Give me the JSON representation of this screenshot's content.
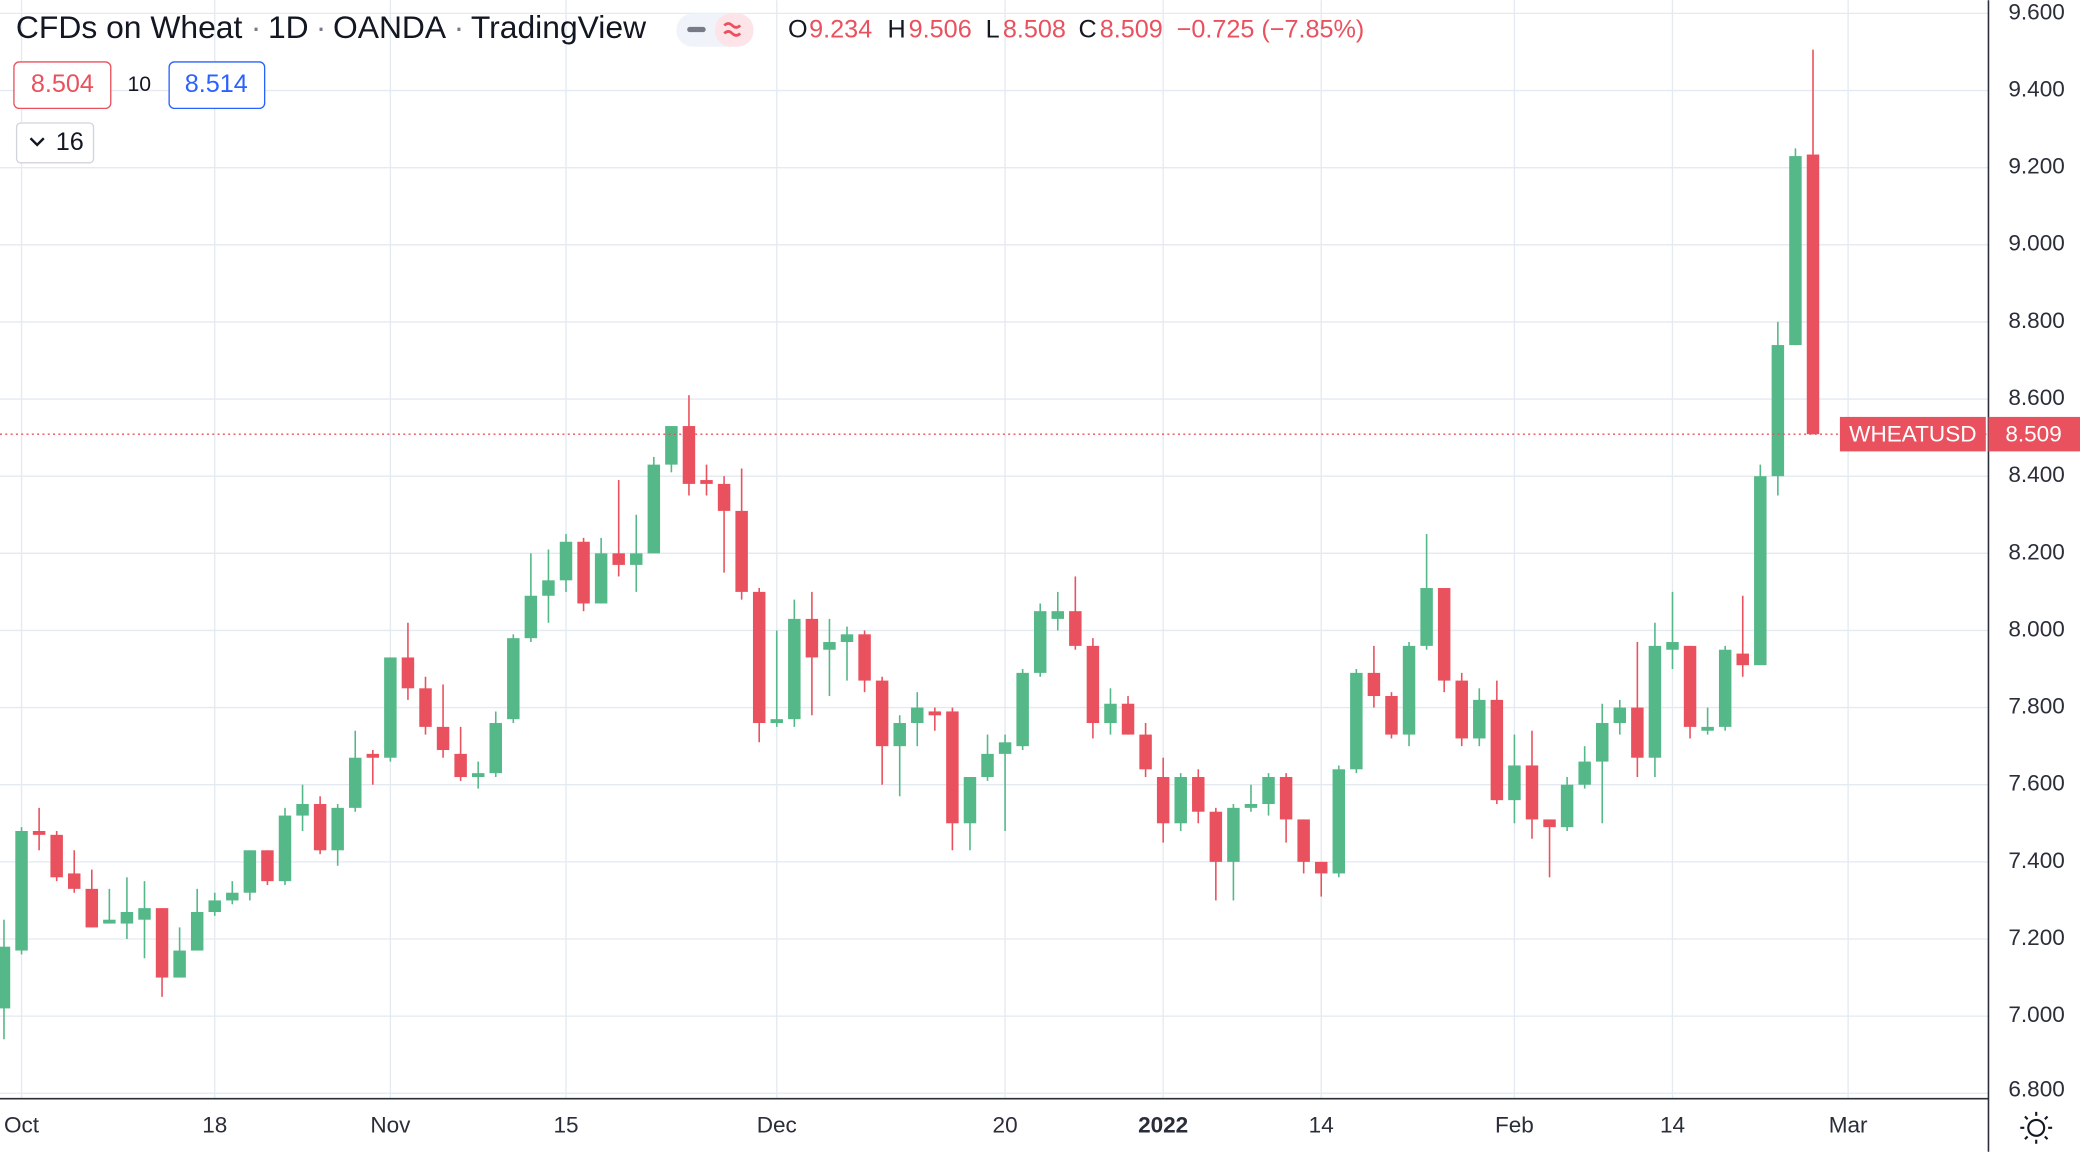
{
  "header": {
    "symbol": "CFDs on Wheat",
    "interval": "1D",
    "exchange": "OANDA",
    "source": "TradingView",
    "o_label": "O",
    "h_label": "H",
    "l_label": "L",
    "c_label": "C",
    "change": "−0.725 (−7.85%)",
    "bid": "8.504",
    "spread": "10",
    "ask": "8.514",
    "indicator_count": "16"
  },
  "chart_data": {
    "type": "candlestick",
    "ticker": "WHEATUSD",
    "up_color": "#55b888",
    "down_color": "#e9515e",
    "grid": true,
    "ylim": [
      6.786,
      9.634
    ],
    "yticks": [
      {
        "value": 6.8,
        "label": "6.800"
      },
      {
        "value": 7.0,
        "label": "7.000"
      },
      {
        "value": 7.2,
        "label": "7.200"
      },
      {
        "value": 7.4,
        "label": "7.400"
      },
      {
        "value": 7.6,
        "label": "7.600"
      },
      {
        "value": 7.8,
        "label": "7.800"
      },
      {
        "value": 8.0,
        "label": "8.000"
      },
      {
        "value": 8.2,
        "label": "8.200"
      },
      {
        "value": 8.4,
        "label": "8.400"
      },
      {
        "value": 8.6,
        "label": "8.600"
      },
      {
        "value": 8.8,
        "label": "8.800"
      },
      {
        "value": 9.0,
        "label": "9.000"
      },
      {
        "value": 9.2,
        "label": "9.200"
      },
      {
        "value": 9.4,
        "label": "9.400"
      },
      {
        "value": 9.6,
        "label": "9.600"
      }
    ],
    "categories": [
      null,
      "Oct",
      null,
      null,
      null,
      null,
      null,
      null,
      null,
      null,
      null,
      null,
      "18",
      null,
      null,
      null,
      null,
      null,
      null,
      null,
      null,
      null,
      "Nov",
      null,
      null,
      null,
      null,
      null,
      null,
      null,
      null,
      null,
      "15",
      null,
      null,
      null,
      null,
      null,
      null,
      null,
      null,
      null,
      null,
      null,
      "Dec",
      null,
      null,
      null,
      null,
      null,
      null,
      null,
      null,
      null,
      null,
      null,
      null,
      "20",
      null,
      null,
      null,
      null,
      null,
      null,
      null,
      null,
      "2022",
      null,
      null,
      null,
      null,
      null,
      null,
      null,
      null,
      "14",
      null,
      null,
      null,
      null,
      null,
      null,
      null,
      null,
      null,
      null,
      "Feb",
      null,
      null,
      null,
      null,
      null,
      null,
      null,
      null,
      "14",
      null,
      null,
      null,
      null,
      null,
      null,
      null,
      null,
      null,
      "Mar"
    ],
    "open": [
      7.02,
      7.17,
      7.48,
      7.47,
      7.37,
      7.33,
      7.24,
      7.24,
      7.25,
      7.28,
      7.1,
      7.17,
      7.27,
      7.3,
      7.32,
      7.43,
      7.35,
      7.52,
      7.55,
      7.43,
      7.54,
      7.68,
      7.67,
      7.93,
      7.85,
      7.75,
      7.68,
      7.62,
      7.63,
      7.77,
      7.98,
      8.09,
      8.13,
      8.23,
      8.07,
      8.2,
      8.17,
      8.2,
      8.43,
      8.53,
      8.39,
      8.38,
      8.31,
      8.1,
      7.76,
      7.77,
      8.03,
      7.95,
      7.97,
      7.99,
      7.87,
      7.7,
      7.76,
      7.79,
      7.79,
      7.5,
      7.62,
      7.68,
      7.7,
      7.89,
      8.03,
      8.05,
      7.96,
      7.76,
      7.81,
      7.73,
      7.62,
      7.5,
      7.62,
      7.53,
      7.4,
      7.54,
      7.55,
      7.62,
      7.51,
      7.4,
      7.37,
      7.64,
      7.89,
      7.83,
      7.73,
      7.96,
      8.11,
      7.87,
      7.72,
      7.82,
      7.56,
      7.65,
      7.51,
      7.49,
      7.6,
      7.66,
      7.76,
      7.8,
      7.67,
      7.95,
      7.96,
      7.74,
      7.75,
      7.94,
      7.91,
      8.4,
      8.74,
      9.234,
      null,
      null
    ],
    "high": [
      7.25,
      7.49,
      7.54,
      7.48,
      7.43,
      7.38,
      7.33,
      7.36,
      7.35,
      7.28,
      7.23,
      7.33,
      7.32,
      7.35,
      7.43,
      7.43,
      7.54,
      7.6,
      7.57,
      7.55,
      7.74,
      7.69,
      7.93,
      8.02,
      7.88,
      7.86,
      7.75,
      7.66,
      7.79,
      7.99,
      8.2,
      8.21,
      8.25,
      8.24,
      8.24,
      8.39,
      8.3,
      8.45,
      8.53,
      8.61,
      8.43,
      8.4,
      8.42,
      8.11,
      8.0,
      8.08,
      8.1,
      8.03,
      8.01,
      8.0,
      7.88,
      7.78,
      7.84,
      7.8,
      7.8,
      7.62,
      7.73,
      7.73,
      7.9,
      8.07,
      8.1,
      8.14,
      7.98,
      7.85,
      7.83,
      7.76,
      7.67,
      7.63,
      7.64,
      7.54,
      7.55,
      7.6,
      7.63,
      7.63,
      7.51,
      7.4,
      7.65,
      7.9,
      7.96,
      7.84,
      7.97,
      8.25,
      8.11,
      7.89,
      7.85,
      7.87,
      7.73,
      7.74,
      7.51,
      7.62,
      7.7,
      7.81,
      7.82,
      7.97,
      8.02,
      8.1,
      7.96,
      7.8,
      7.96,
      8.09,
      8.43,
      8.8,
      9.25,
      9.506,
      null,
      null
    ],
    "low": [
      6.94,
      7.16,
      7.43,
      7.35,
      7.32,
      7.23,
      7.24,
      7.2,
      7.15,
      7.05,
      7.1,
      7.17,
      7.26,
      7.29,
      7.3,
      7.34,
      7.34,
      7.48,
      7.42,
      7.39,
      7.53,
      7.6,
      7.66,
      7.82,
      7.73,
      7.67,
      7.61,
      7.59,
      7.62,
      7.76,
      7.97,
      8.02,
      8.1,
      8.05,
      8.07,
      8.14,
      8.1,
      8.2,
      8.41,
      8.35,
      8.35,
      8.15,
      8.08,
      7.71,
      7.75,
      7.75,
      7.78,
      7.83,
      7.87,
      7.84,
      7.6,
      7.57,
      7.7,
      7.74,
      7.43,
      7.43,
      7.61,
      7.48,
      7.69,
      7.88,
      8.0,
      7.95,
      7.72,
      7.73,
      7.73,
      7.62,
      7.45,
      7.48,
      7.5,
      7.3,
      7.3,
      7.53,
      7.52,
      7.45,
      7.37,
      7.31,
      7.36,
      7.63,
      7.8,
      7.72,
      7.7,
      7.95,
      7.84,
      7.7,
      7.7,
      7.55,
      7.5,
      7.46,
      7.36,
      7.48,
      7.59,
      7.5,
      7.73,
      7.62,
      7.62,
      7.9,
      7.72,
      7.73,
      7.74,
      7.88,
      7.91,
      8.35,
      8.74,
      8.508,
      null,
      null
    ],
    "close": [
      7.18,
      7.48,
      7.47,
      7.36,
      7.33,
      7.23,
      7.25,
      7.27,
      7.28,
      7.1,
      7.17,
      7.27,
      7.3,
      7.32,
      7.43,
      7.35,
      7.52,
      7.55,
      7.43,
      7.54,
      7.67,
      7.67,
      7.93,
      7.85,
      7.75,
      7.69,
      7.62,
      7.63,
      7.76,
      7.98,
      8.09,
      8.13,
      8.23,
      8.07,
      8.2,
      8.17,
      8.2,
      8.43,
      8.53,
      8.38,
      8.38,
      8.31,
      8.1,
      7.76,
      7.77,
      8.03,
      7.93,
      7.97,
      7.99,
      7.87,
      7.7,
      7.76,
      7.8,
      7.78,
      7.5,
      7.62,
      7.68,
      7.71,
      7.89,
      8.05,
      8.05,
      7.96,
      7.76,
      7.81,
      7.73,
      7.64,
      7.5,
      7.62,
      7.53,
      7.4,
      7.54,
      7.55,
      7.62,
      7.51,
      7.4,
      7.37,
      7.64,
      7.89,
      7.83,
      7.73,
      7.96,
      8.11,
      7.87,
      7.72,
      7.82,
      7.56,
      7.65,
      7.51,
      7.49,
      7.6,
      7.66,
      7.76,
      7.8,
      7.67,
      7.96,
      7.97,
      7.75,
      7.75,
      7.95,
      7.91,
      8.4,
      8.74,
      9.23,
      8.509,
      null,
      null
    ]
  }
}
